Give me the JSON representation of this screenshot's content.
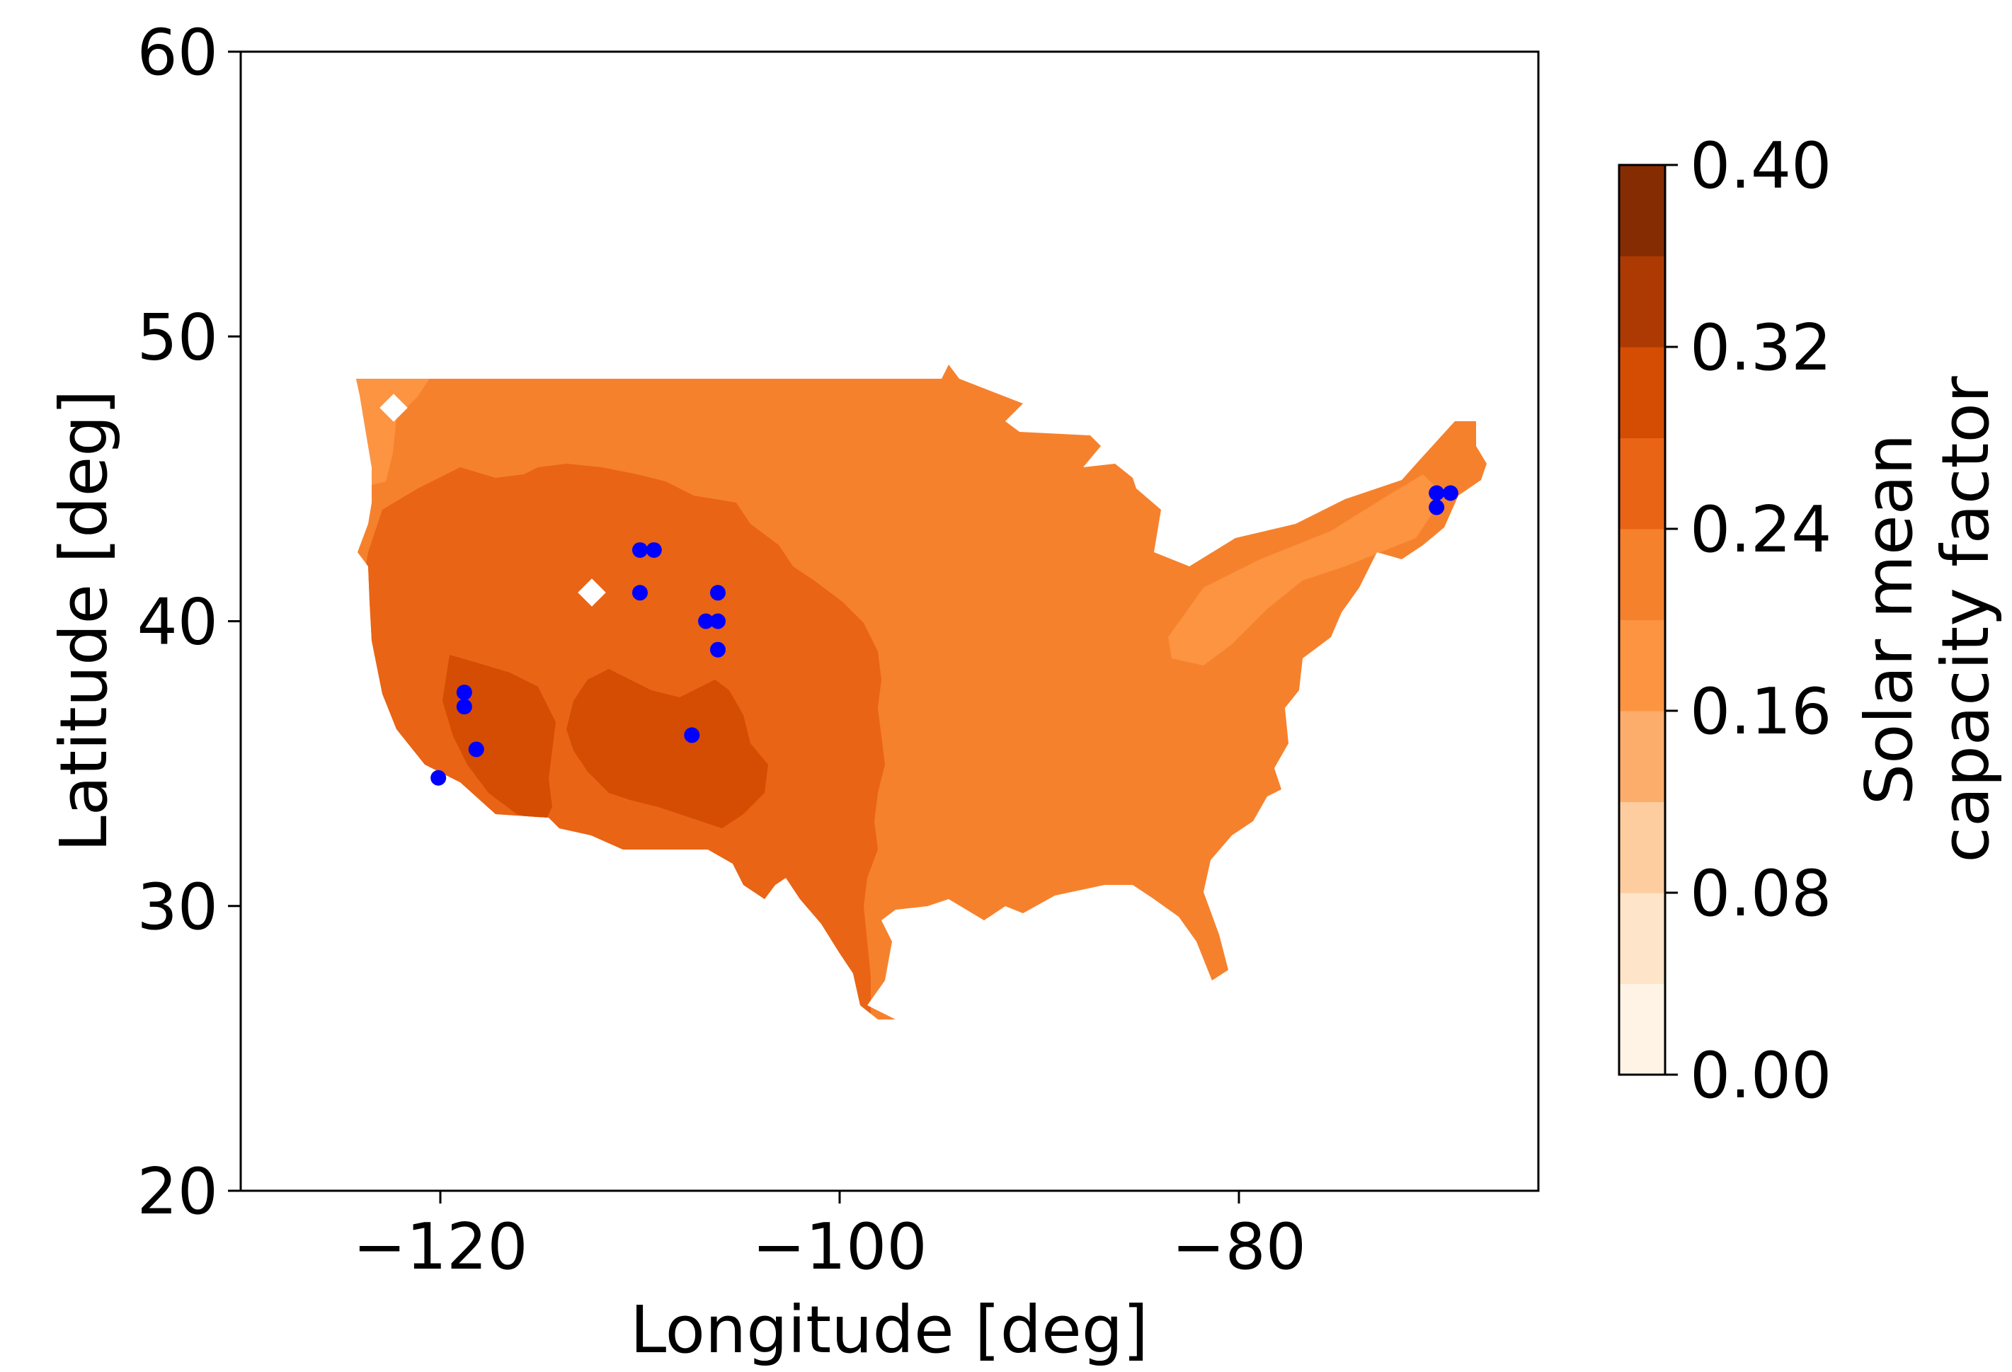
{
  "chart_data": {
    "type": "heatmap",
    "xlabel": "Longitude [deg]",
    "ylabel": "Latitude [deg]",
    "xlim": [
      -130,
      -65
    ],
    "ylim": [
      20,
      60
    ],
    "x_ticks": [
      -120,
      -100,
      -80
    ],
    "x_tick_labels": [
      "−120",
      "−100",
      "−80"
    ],
    "y_ticks": [
      20,
      30,
      40,
      50,
      60
    ],
    "y_tick_labels": [
      "20",
      "30",
      "40",
      "50",
      "60"
    ],
    "colorbar": {
      "label_line1": "Solar mean",
      "label_line2": "capacity factor",
      "range": [
        0,
        0.4
      ],
      "ticks": [
        0,
        0.08,
        0.16,
        0.24,
        0.32,
        0.4
      ],
      "tick_labels": [
        "0.00",
        "0.08",
        "0.16",
        "0.24",
        "0.32",
        "0.40"
      ],
      "levels": [
        0,
        0.04,
        0.08,
        0.12,
        0.16,
        0.2,
        0.24,
        0.28,
        0.32,
        0.36,
        0.4
      ],
      "colors": [
        "#fff3e6",
        "#fee4c8",
        "#fdcd9f",
        "#fdad6b",
        "#fc9442",
        "#f6812d",
        "#e96414",
        "#d44d03",
        "#ad3a03",
        "#862c03"
      ]
    },
    "region": "contiguous United States",
    "contour_levels": [
      {
        "range": [
          0.16,
          0.2
        ],
        "where": "northwest coast, New England"
      },
      {
        "range": [
          0.2,
          0.24
        ],
        "where": "central and eastern US"
      },
      {
        "range": [
          0.24,
          0.28
        ],
        "where": "western interior and southwest"
      },
      {
        "range": [
          0.28,
          0.32
        ],
        "where": "southern California and Four Corners"
      }
    ],
    "markers": {
      "color": "#0000ff",
      "points": [
        {
          "lon": -120.1,
          "lat": 34.5
        },
        {
          "lon": -118.8,
          "lat": 37.5
        },
        {
          "lon": -118.8,
          "lat": 37.0
        },
        {
          "lon": -118.2,
          "lat": 35.5
        },
        {
          "lon": -110.0,
          "lat": 42.5
        },
        {
          "lon": -109.3,
          "lat": 42.5
        },
        {
          "lon": -110.0,
          "lat": 41.0
        },
        {
          "lon": -107.4,
          "lat": 36.0
        },
        {
          "lon": -106.7,
          "lat": 40.0
        },
        {
          "lon": -106.1,
          "lat": 41.0
        },
        {
          "lon": -106.1,
          "lat": 40.0
        },
        {
          "lon": -106.1,
          "lat": 39.0
        },
        {
          "lon": -70.1,
          "lat": 44.5
        },
        {
          "lon": -69.4,
          "lat": 44.5
        },
        {
          "lon": -70.1,
          "lat": 44.0
        }
      ]
    }
  }
}
